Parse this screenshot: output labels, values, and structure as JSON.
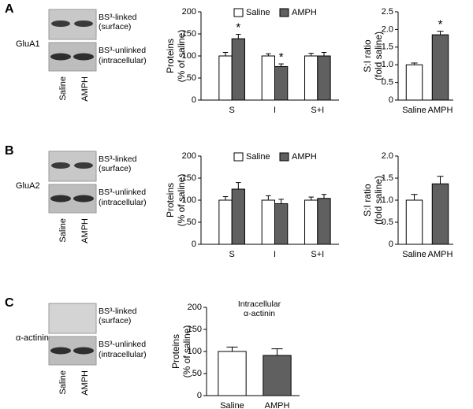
{
  "panels": [
    {
      "label": "A",
      "protein": "GluA1",
      "blot_rows": [
        "BS³-linked",
        "(surface)",
        "BS³-unlinked",
        "(intracellular)"
      ],
      "lanes": [
        "Saline",
        "AMPH"
      ]
    },
    {
      "label": "B",
      "protein": "GluA2",
      "blot_rows": [
        "BS³-linked",
        "(surface)",
        "BS³-unlinked",
        "(intracellular)"
      ],
      "lanes": [
        "Saline",
        "AMPH"
      ]
    },
    {
      "label": "C",
      "protein": "α-actinin",
      "blot_rows": [
        "BS³-linked",
        "(surface)",
        "BS³-unlinked",
        "(intracellular)"
      ],
      "lanes": [
        "Saline",
        "AMPH"
      ]
    }
  ],
  "chart_data": [
    {
      "type": "bar",
      "ylabel": [
        "Proteins",
        "(% of saline)"
      ],
      "categories": [
        "S",
        "I",
        "S+I"
      ],
      "series": [
        {
          "name": "Saline",
          "color": "#ffffff",
          "values": [
            100,
            100,
            100
          ],
          "errors": [
            8,
            5,
            6
          ]
        },
        {
          "name": "AMPH",
          "color": "#606060",
          "values": [
            139,
            76,
            100
          ],
          "errors": [
            10,
            6,
            8
          ],
          "significance": [
            "*",
            "*",
            null
          ]
        }
      ],
      "ylim": [
        0,
        200
      ],
      "yticks": [
        0,
        50,
        100,
        150,
        200
      ],
      "legend": "top"
    },
    {
      "type": "bar",
      "ylabel": [
        "S:I ratio",
        "(fold saline)"
      ],
      "categories": [
        "Saline",
        "AMPH"
      ],
      "values": [
        1.0,
        1.85
      ],
      "errors": [
        0.05,
        0.1
      ],
      "colors": [
        "#ffffff",
        "#606060"
      ],
      "significance": [
        null,
        "*"
      ],
      "ylim": [
        0,
        2.5
      ],
      "yticks": [
        0,
        0.5,
        {
          "value": 1,
          "label": "1.0"
        },
        1.5,
        {
          "value": 2,
          "label": "2.0"
        },
        2.5
      ]
    },
    {
      "type": "bar",
      "ylabel": [
        "Proteins",
        "(% of saline)"
      ],
      "categories": [
        "S",
        "I",
        "S+I"
      ],
      "series": [
        {
          "name": "Saline",
          "color": "#ffffff",
          "values": [
            100,
            100,
            100
          ],
          "errors": [
            8,
            10,
            7
          ]
        },
        {
          "name": "AMPH",
          "color": "#606060",
          "values": [
            125,
            92,
            104
          ],
          "errors": [
            15,
            10,
            9
          ]
        }
      ],
      "ylim": [
        0,
        200
      ],
      "yticks": [
        0,
        50,
        100,
        150,
        200
      ],
      "legend": "top"
    },
    {
      "type": "bar",
      "ylabel": [
        "S:I ratio",
        "(fold saline)"
      ],
      "categories": [
        "Saline",
        "AMPH"
      ],
      "values": [
        1.0,
        1.37
      ],
      "errors": [
        0.13,
        0.17
      ],
      "colors": [
        "#ffffff",
        "#606060"
      ],
      "ylim": [
        0,
        2.0
      ],
      "yticks": [
        0,
        0.5,
        {
          "value": 1,
          "label": "1.0"
        },
        1.5,
        {
          "value": 2,
          "label": "2.0"
        }
      ]
    },
    {
      "type": "bar",
      "title": [
        "Intracellular",
        "α-actinin"
      ],
      "ylabel": [
        "Proteins",
        "(% of saline)"
      ],
      "categories": [
        "Saline",
        "AMPH"
      ],
      "values": [
        100,
        91
      ],
      "errors": [
        10,
        15
      ],
      "colors": [
        "#ffffff",
        "#606060"
      ],
      "ylim": [
        0,
        200
      ],
      "yticks": [
        0,
        50,
        100,
        150,
        200
      ]
    }
  ]
}
